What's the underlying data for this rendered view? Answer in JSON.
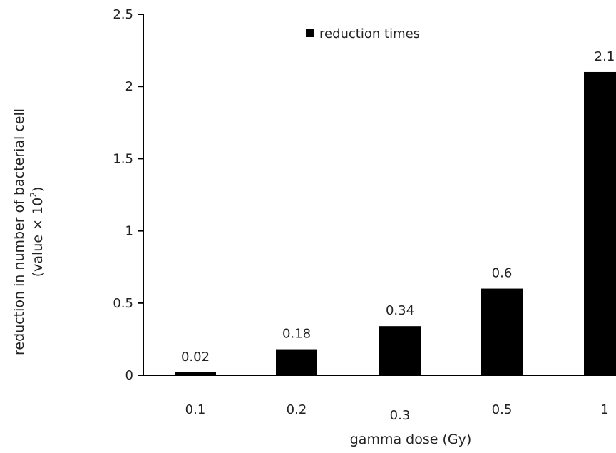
{
  "chart_data": {
    "type": "bar",
    "categories": [
      "0.1",
      "0.2",
      "0.3",
      "0.5",
      "1"
    ],
    "series": [
      {
        "name": "reduction times",
        "values": [
          0.02,
          0.18,
          0.34,
          0.6,
          2.1
        ]
      }
    ],
    "data_labels": [
      "0.02",
      "0.18",
      "0.34",
      "0.6",
      "2.1"
    ],
    "xlabel": "gamma dose (Gy)",
    "ylabel_line1": "reduction in number of bacterial cell",
    "ylabel_line2": "(value × 10",
    "ylabel_sup": "2",
    "ylabel_close": ")",
    "ylim": [
      0,
      2.5
    ],
    "yticks": [
      0,
      0.5,
      1,
      1.5,
      2,
      2.5
    ],
    "ytick_labels": [
      "0",
      "0.5",
      "1",
      "1.5",
      "2",
      "2.5"
    ],
    "legend_position": "top-center",
    "grid": false,
    "bar_color": "#000000"
  }
}
